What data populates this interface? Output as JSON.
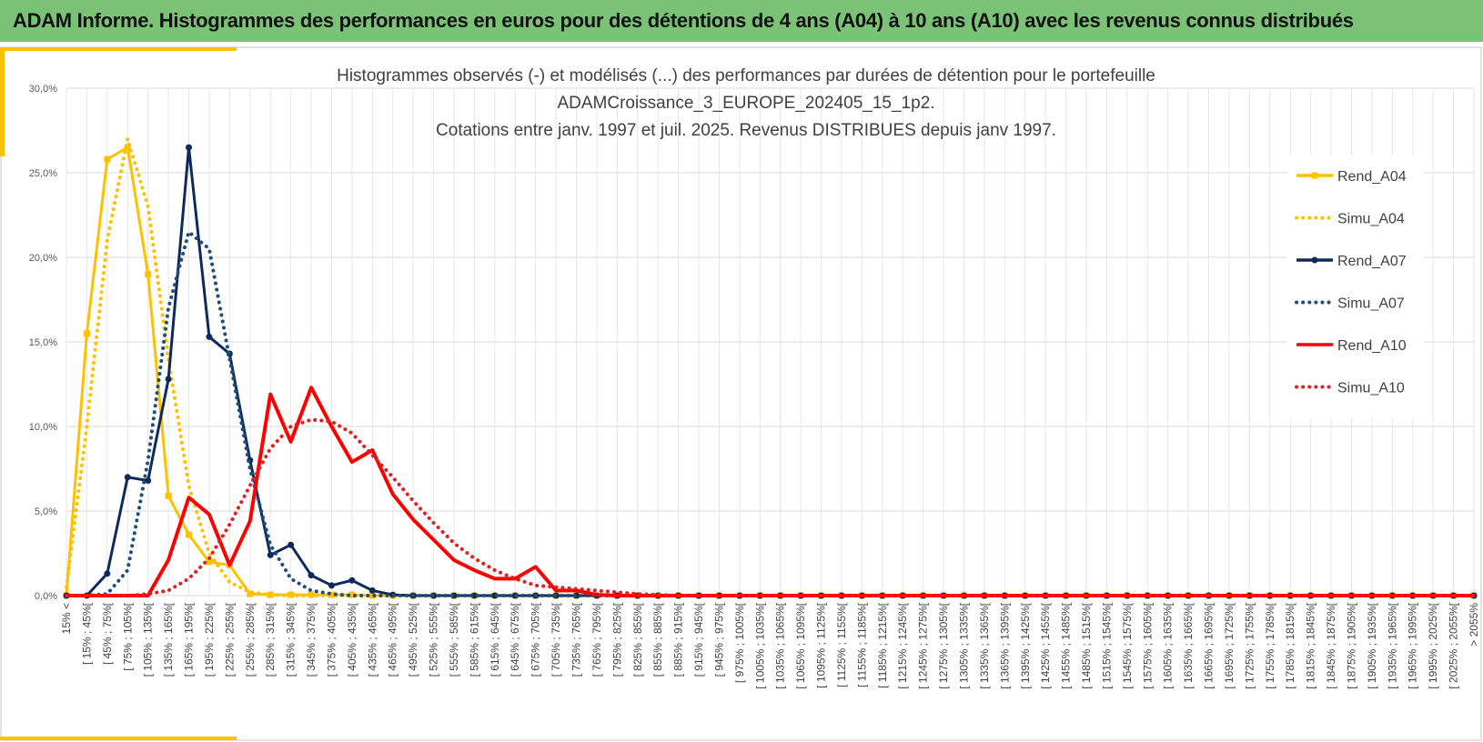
{
  "header": {
    "title": "ADAM Informe. Histogrammes des performances en euros pour des détentions de 4 ans (A04) à 10 ans (A10) avec les revenus connus distribués"
  },
  "chart_data": {
    "type": "line",
    "title": [
      "Histogrammes observés (-) et modélisés (...) des performances par durées de détention pour  le portefeuille",
      "ADAMCroissance_3_EUROPE_202405_15_1p2.",
      "Cotations entre janv. 1997 et juil. 2025. Revenus DISTRIBUES depuis janv 1997."
    ],
    "categories": [
      "15% <",
      "[ 15% ; 45%[",
      "[ 45% ; 75%[",
      "[ 75% ; 105%[",
      "[ 105% ; 135%[",
      "[ 135% ; 165%[",
      "[ 165% ; 195%[",
      "[ 195% ; 225%[",
      "[ 225% ; 255%[",
      "[ 255% ; 285%[",
      "[ 285% ; 315%[",
      "[ 315% ; 345%[",
      "[ 345% ; 375%[",
      "[ 375% ; 405%[",
      "[ 405% ; 435%[",
      "[ 435% ; 465%[",
      "[ 465% ; 495%[",
      "[ 495% ; 525%[",
      "[ 525% ; 555%[",
      "[ 555% ; 585%[",
      "[ 585% ; 615%[",
      "[ 615% ; 645%[",
      "[ 645% ; 675%[",
      "[ 675% ; 705%[",
      "[ 705% ; 735%[",
      "[ 735% ; 765%[",
      "[ 765% ; 795%[",
      "[ 795% ; 825%[",
      "[ 825% ; 855%[",
      "[ 855% ; 885%[",
      "[ 885% ; 915%[",
      "[ 915% ; 945%[",
      "[ 945% ; 975%[",
      "[ 975% ; 1005%[",
      "[ 1005% ; 1035%[",
      "[ 1035% ; 1065%[",
      "[ 1065% ; 1095%[",
      "[ 1095% ; 1125%[",
      "[ 1125% ; 1155%[",
      "[ 1155% ; 1185%[",
      "[ 1185% ; 1215%[",
      "[ 1215% ; 1245%[",
      "[ 1245% ; 1275%[",
      "[ 1275% ; 1305%[",
      "[ 1305% ; 1335%[",
      "[ 1335% ; 1365%[",
      "[ 1365% ; 1395%[",
      "[ 1395% ; 1425%[",
      "[ 1425% ; 1455%[",
      "[ 1455% ; 1485%[",
      "[ 1485% ; 1515%[",
      "[ 1515% ; 1545%[",
      "[ 1545% ; 1575%[",
      "[ 1575% ; 1605%[",
      "[ 1605% ; 1635%[",
      "[ 1635% ; 1665%[",
      "[ 1665% ; 1695%[",
      "[ 1695% ; 1725%[",
      "[ 1725% ; 1755%[",
      "[ 1755% ; 1785%[",
      "[ 1785% ; 1815%[",
      "[ 1815% ; 1845%[",
      "[ 1845% ; 1875%[",
      "[ 1875% ; 1905%[",
      "[ 1905% ; 1935%[",
      "[ 1935% ; 1965%[",
      "[ 1965% ; 1995%[",
      "[ 1995% ; 2025%[",
      "[ 2025% ; 2055%[",
      "> 2055%"
    ],
    "series": [
      {
        "name": "Rend_A04",
        "color": "#ffc000",
        "style": "solid",
        "marker": "square",
        "values": [
          0,
          15.5,
          25.8,
          26.5,
          19,
          5.9,
          3.6,
          2,
          1.8,
          0.1,
          0.05,
          0.05,
          0.05,
          0.05,
          0.05,
          0,
          0,
          0,
          0,
          0,
          0,
          0,
          0,
          0,
          0,
          0,
          0,
          0,
          0,
          0,
          0,
          0,
          0,
          0,
          0,
          0,
          0,
          0,
          0,
          0,
          0,
          0,
          0,
          0,
          0,
          0,
          0,
          0,
          0,
          0,
          0,
          0,
          0,
          0,
          0,
          0,
          0,
          0,
          0,
          0,
          0,
          0,
          0,
          0,
          0,
          0,
          0,
          0,
          0,
          0
        ]
      },
      {
        "name": "Simu_A04",
        "color": "#ffc000",
        "style": "dotted",
        "marker": "none",
        "values": [
          0.5,
          10,
          21,
          27,
          23,
          14,
          6.5,
          2.5,
          0.8,
          0.2,
          0.05,
          0,
          0,
          0,
          0,
          0,
          0,
          0,
          0,
          0,
          0,
          0,
          0,
          0,
          0,
          0,
          0,
          0,
          0,
          0,
          0,
          0,
          0,
          0,
          0,
          0,
          0,
          0,
          0,
          0,
          0,
          0,
          0,
          0,
          0,
          0,
          0,
          0,
          0,
          0,
          0,
          0,
          0,
          0,
          0,
          0,
          0,
          0,
          0,
          0,
          0,
          0,
          0,
          0,
          0,
          0,
          0,
          0,
          0,
          0
        ]
      },
      {
        "name": "Rend_A07",
        "color": "#0e2a5c",
        "style": "solid",
        "marker": "circle",
        "values": [
          0,
          0,
          1.3,
          7,
          6.8,
          12.8,
          26.5,
          15.3,
          14.3,
          8,
          2.4,
          3,
          1.2,
          0.6,
          0.9,
          0.3,
          0.05,
          0,
          0,
          0,
          0,
          0,
          0,
          0,
          0,
          0,
          0,
          0,
          0,
          0,
          0,
          0,
          0,
          0,
          0,
          0,
          0,
          0,
          0,
          0,
          0,
          0,
          0,
          0,
          0,
          0,
          0,
          0,
          0,
          0,
          0,
          0,
          0,
          0,
          0,
          0,
          0,
          0,
          0,
          0,
          0,
          0,
          0,
          0,
          0,
          0,
          0,
          0,
          0,
          0
        ]
      },
      {
        "name": "Simu_A07",
        "color": "#1f4e79",
        "style": "dotted",
        "marker": "none",
        "values": [
          0,
          0,
          0.1,
          1.5,
          8,
          17,
          21.5,
          20.5,
          14,
          7.5,
          3,
          1,
          0.3,
          0.1,
          0,
          0,
          0,
          0,
          0,
          0,
          0,
          0,
          0,
          0,
          0,
          0,
          0,
          0,
          0,
          0,
          0,
          0,
          0,
          0,
          0,
          0,
          0,
          0,
          0,
          0,
          0,
          0,
          0,
          0,
          0,
          0,
          0,
          0,
          0,
          0,
          0,
          0,
          0,
          0,
          0,
          0,
          0,
          0,
          0,
          0,
          0,
          0,
          0,
          0,
          0,
          0,
          0,
          0,
          0,
          0
        ]
      },
      {
        "name": "Rend_A10",
        "color": "#ff0000",
        "style": "solid",
        "marker": "none",
        "values": [
          0,
          0,
          0,
          0,
          0,
          2.1,
          5.8,
          4.8,
          1.8,
          4.4,
          11.9,
          9.1,
          12.3,
          10,
          7.9,
          8.6,
          6,
          4.5,
          3.3,
          2.1,
          1.5,
          1,
          1,
          1.7,
          0.3,
          0.3,
          0.05,
          0,
          0,
          0,
          0,
          0,
          0,
          0,
          0,
          0,
          0,
          0,
          0,
          0,
          0,
          0,
          0,
          0,
          0,
          0,
          0,
          0,
          0,
          0,
          0,
          0,
          0,
          0,
          0,
          0,
          0,
          0,
          0,
          0,
          0,
          0,
          0,
          0,
          0,
          0,
          0,
          0,
          0,
          0
        ]
      },
      {
        "name": "Simu_A10",
        "color": "#e02020",
        "style": "dotted",
        "marker": "none",
        "values": [
          0,
          0,
          0,
          0,
          0.1,
          0.3,
          1,
          2.2,
          4.2,
          6.5,
          8.7,
          10,
          10.4,
          10.3,
          9.6,
          8.3,
          7,
          5.6,
          4.3,
          3.1,
          2.2,
          1.5,
          1,
          0.6,
          0.5,
          0.4,
          0.3,
          0.2,
          0.1,
          0.05,
          0,
          0,
          0,
          0,
          0,
          0,
          0,
          0,
          0,
          0,
          0,
          0,
          0,
          0,
          0,
          0,
          0,
          0,
          0,
          0,
          0,
          0,
          0,
          0,
          0,
          0,
          0,
          0,
          0,
          0,
          0,
          0,
          0,
          0,
          0,
          0,
          0,
          0,
          0,
          0
        ]
      }
    ],
    "ylim": [
      0,
      30
    ],
    "yticks": [
      {
        "value": 0,
        "label": "0,0%"
      },
      {
        "value": 5,
        "label": "5,0%"
      },
      {
        "value": 10,
        "label": "10,0%"
      },
      {
        "value": 15,
        "label": "15,0%"
      },
      {
        "value": 20,
        "label": "20,0%"
      },
      {
        "value": 25,
        "label": "25,0%"
      },
      {
        "value": 30,
        "label": "30,0%"
      }
    ],
    "grid": true,
    "legend": "right"
  }
}
